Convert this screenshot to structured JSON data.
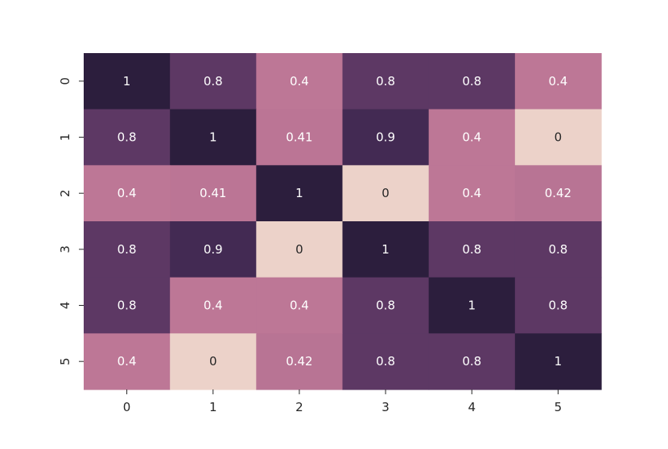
{
  "chart_data": {
    "type": "heatmap",
    "title": "",
    "xlabel": "",
    "ylabel": "",
    "x_labels": [
      "0",
      "1",
      "2",
      "3",
      "4",
      "5"
    ],
    "y_labels": [
      "0",
      "1",
      "2",
      "3",
      "4",
      "5"
    ],
    "values": [
      [
        1,
        0.8,
        0.4,
        0.8,
        0.8,
        0.4
      ],
      [
        0.8,
        1,
        0.41,
        0.9,
        0.4,
        0
      ],
      [
        0.4,
        0.41,
        1,
        0,
        0.4,
        0.42
      ],
      [
        0.8,
        0.9,
        0,
        1,
        0.8,
        0.8
      ],
      [
        0.8,
        0.4,
        0.4,
        0.8,
        1,
        0.8
      ],
      [
        0.4,
        0,
        0.42,
        0.8,
        0.8,
        1
      ]
    ],
    "colorbar": false,
    "color_scale": {
      "min": 0,
      "max": 1,
      "stops": [
        {
          "value": 0,
          "color": "#ecd2c9"
        },
        {
          "value": 0.4,
          "color": "#bd7796"
        },
        {
          "value": 0.8,
          "color": "#5d3864"
        },
        {
          "value": 0.9,
          "color": "#432a53"
        },
        {
          "value": 1,
          "color": "#2c1e3d"
        }
      ]
    },
    "annotation_colors": {
      "light_text": "#ffffff",
      "dark_text": "#262626"
    }
  }
}
